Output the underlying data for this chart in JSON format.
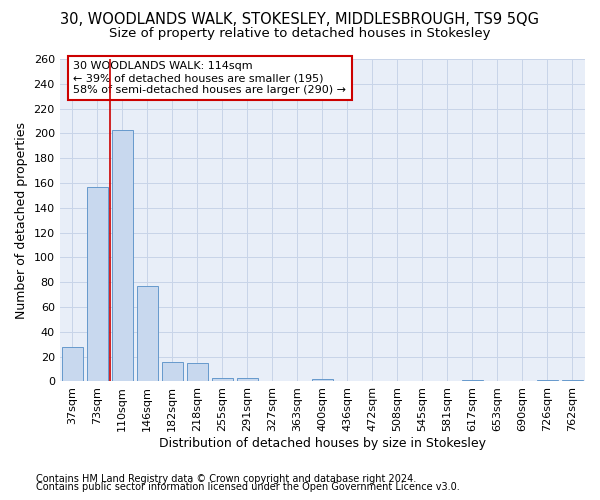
{
  "title": "30, WOODLANDS WALK, STOKESLEY, MIDDLESBROUGH, TS9 5QG",
  "subtitle": "Size of property relative to detached houses in Stokesley",
  "xlabel": "Distribution of detached houses by size in Stokesley",
  "ylabel": "Number of detached properties",
  "footnote1": "Contains HM Land Registry data © Crown copyright and database right 2024.",
  "footnote2": "Contains public sector information licensed under the Open Government Licence v3.0.",
  "bar_labels": [
    "37sqm",
    "73sqm",
    "110sqm",
    "146sqm",
    "182sqm",
    "218sqm",
    "255sqm",
    "291sqm",
    "327sqm",
    "363sqm",
    "400sqm",
    "436sqm",
    "472sqm",
    "508sqm",
    "545sqm",
    "581sqm",
    "617sqm",
    "653sqm",
    "690sqm",
    "726sqm",
    "762sqm"
  ],
  "bar_values": [
    28,
    157,
    203,
    77,
    16,
    15,
    3,
    3,
    0,
    0,
    2,
    0,
    0,
    0,
    0,
    0,
    1,
    0,
    0,
    1,
    1
  ],
  "bar_color": "#c8d8ee",
  "bar_edge_color": "#6699cc",
  "grid_color": "#c8d4e8",
  "background_color": "#e8eef8",
  "vline_x_index": 2,
  "vline_color": "#cc0000",
  "annotation_text": "30 WOODLANDS WALK: 114sqm\n← 39% of detached houses are smaller (195)\n58% of semi-detached houses are larger (290) →",
  "annotation_box_color": "white",
  "annotation_box_edge": "#cc0000",
  "ylim": [
    0,
    260
  ],
  "yticks": [
    0,
    20,
    40,
    60,
    80,
    100,
    120,
    140,
    160,
    180,
    200,
    220,
    240,
    260
  ],
  "title_fontsize": 10.5,
  "subtitle_fontsize": 9.5,
  "ylabel_fontsize": 9,
  "xlabel_fontsize": 9,
  "tick_fontsize": 8,
  "annotation_fontsize": 8,
  "footnote_fontsize": 7
}
